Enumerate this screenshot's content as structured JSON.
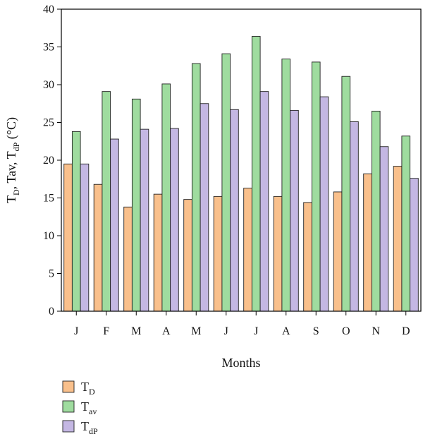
{
  "chart_data": {
    "type": "bar",
    "categories": [
      "J",
      "F",
      "M",
      "A",
      "M",
      "J",
      "J",
      "A",
      "S",
      "O",
      "N",
      "D"
    ],
    "series": [
      {
        "name": "T_D",
        "label_main": "T",
        "label_sub": "D",
        "color": "#f9c08c",
        "values": [
          19.5,
          16.8,
          13.8,
          15.5,
          14.8,
          15.2,
          16.3,
          15.2,
          14.4,
          15.8,
          18.2,
          19.2
        ]
      },
      {
        "name": "T_av",
        "label_main": "T",
        "label_sub": "av",
        "color": "#9fdc9f",
        "values": [
          23.8,
          29.1,
          28.1,
          30.1,
          32.8,
          34.1,
          36.4,
          33.4,
          33.0,
          31.1,
          26.5,
          23.2
        ]
      },
      {
        "name": "T_dP",
        "label_main": "T",
        "label_sub": "dP",
        "color": "#c4b7e3",
        "values": [
          19.5,
          22.8,
          24.1,
          24.2,
          27.5,
          26.7,
          29.1,
          26.6,
          28.4,
          25.1,
          21.8,
          17.6
        ]
      }
    ],
    "xlabel": "Months",
    "ylabel": {
      "p1": "T",
      "p1_sub": "D",
      "p2": ", Tav, T",
      "p2_sub": "dP",
      "p3": " (°C)"
    },
    "ylim": [
      0,
      40
    ],
    "yticks": [
      0,
      5,
      10,
      15,
      20,
      25,
      30,
      35,
      40
    ],
    "grid": false,
    "legend_position": "bottom-left"
  }
}
